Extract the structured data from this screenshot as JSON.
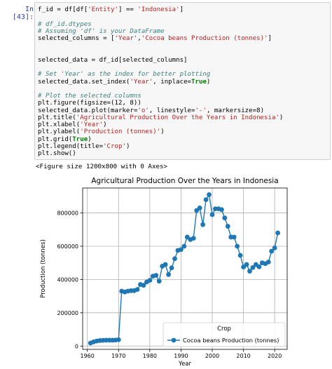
{
  "cell": {
    "prompt": "In [43]:",
    "lines": [
      [
        [
          "nb",
          "f_id = df[df["
        ],
        [
          "st",
          "'Entity'"
        ],
        [
          "nb",
          "] == "
        ],
        [
          "st",
          "'Indonesia'"
        ],
        [
          "nb",
          "]"
        ]
      ],
      [
        [
          "nb",
          ""
        ]
      ],
      [
        [
          "cm",
          "# df_id.dtypes"
        ]
      ],
      [
        [
          "cm",
          "# Assuming 'df' is your DataFrame"
        ]
      ],
      [
        [
          "nb",
          "selected_columns = ["
        ],
        [
          "st",
          "'Year'"
        ],
        [
          "nb",
          ","
        ],
        [
          "st",
          "'Cocoa beans Production (tonnes)'"
        ],
        [
          "nb",
          "]"
        ]
      ],
      [
        [
          "nb",
          ""
        ]
      ],
      [
        [
          "nb",
          ""
        ]
      ],
      [
        [
          "nb",
          "selected_data = df_id[selected_columns]"
        ]
      ],
      [
        [
          "nb",
          ""
        ]
      ],
      [
        [
          "cm",
          "# Set 'Year' as the index for better plotting"
        ]
      ],
      [
        [
          "nb",
          "selected_data.set_index("
        ],
        [
          "st",
          "'Year'"
        ],
        [
          "nb",
          ", inplace="
        ],
        [
          "kw",
          "True"
        ],
        [
          "nb",
          ")"
        ]
      ],
      [
        [
          "nb",
          ""
        ]
      ],
      [
        [
          "cm",
          "# Plot the selected columns"
        ]
      ],
      [
        [
          "nb",
          "plt.figure(figsize=(12, 8))"
        ]
      ],
      [
        [
          "nb",
          "selected_data.plot(marker="
        ],
        [
          "st",
          "'o'"
        ],
        [
          "nb",
          ", linestyle="
        ],
        [
          "st",
          "'-'"
        ],
        [
          "nb",
          ", markersize=8)"
        ]
      ],
      [
        [
          "nb",
          "plt.title("
        ],
        [
          "st",
          "'Agricultural Production Over the Years in Indonesia'"
        ],
        [
          "nb",
          ")"
        ]
      ],
      [
        [
          "nb",
          "plt.xlabel("
        ],
        [
          "st",
          "'Year'"
        ],
        [
          "nb",
          ")"
        ]
      ],
      [
        [
          "nb",
          "plt.ylabel("
        ],
        [
          "st",
          "'Production (tonnes)'"
        ],
        [
          "nb",
          ")"
        ]
      ],
      [
        [
          "nb",
          "plt.grid("
        ],
        [
          "kw",
          "True"
        ],
        [
          "nb",
          ")"
        ]
      ],
      [
        [
          "nb",
          "plt.legend(title="
        ],
        [
          "st",
          "'Crop'"
        ],
        [
          "nb",
          ")"
        ]
      ],
      [
        [
          "nb",
          "plt.show()"
        ]
      ]
    ]
  },
  "output": {
    "text": "<Figure size 1200x800 with 0 Axes>"
  },
  "chart_data": {
    "type": "line",
    "title": "Agricultural Production Over the Years in Indonesia",
    "xlabel": "Year",
    "ylabel": "Production (tonnes)",
    "xlim": [
      1958.5,
      2024
    ],
    "ylim": [
      -20000,
      950000
    ],
    "xticks": [
      1960,
      1970,
      1980,
      1990,
      2000,
      2010,
      2020
    ],
    "yticks": [
      0,
      200000,
      400000,
      600000,
      800000
    ],
    "ytick_labels": [
      "0",
      "200000",
      "400000",
      "600000",
      "800000"
    ],
    "grid": true,
    "legend": {
      "title": "Crop",
      "position": "lower right"
    },
    "color": "#1f77b4",
    "series": [
      {
        "name": "Cocoa beans Production (tonnes)",
        "x": [
          1961,
          1962,
          1963,
          1964,
          1965,
          1966,
          1967,
          1968,
          1969,
          1970,
          1971,
          1972,
          1973,
          1974,
          1975,
          1976,
          1977,
          1978,
          1979,
          1980,
          1981,
          1982,
          1983,
          1984,
          1985,
          1986,
          1987,
          1988,
          1989,
          1990,
          1991,
          1992,
          1993,
          1994,
          1995,
          1996,
          1997,
          1998,
          1999,
          2000,
          2001,
          2002,
          2003,
          2004,
          2005,
          2006,
          2007,
          2008,
          2009,
          2010,
          2011,
          2012,
          2013,
          2014,
          2015,
          2016,
          2017,
          2018,
          2019,
          2020,
          2021
        ],
        "y": [
          18000,
          25000,
          30000,
          33000,
          34000,
          35000,
          35000,
          35000,
          36000,
          38000,
          330000,
          325000,
          330000,
          333000,
          333000,
          340000,
          370000,
          365000,
          385000,
          395000,
          420000,
          425000,
          390000,
          480000,
          490000,
          430000,
          470000,
          525000,
          575000,
          580000,
          600000,
          655000,
          640000,
          648000,
          815000,
          830000,
          730000,
          880000,
          910000,
          790000,
          825000,
          825000,
          820000,
          770000,
          720000,
          655000,
          655000,
          600000,
          545000,
          475000,
          490000,
          450000,
          472000,
          490000,
          476000,
          500000,
          495000,
          505000,
          570000,
          590000,
          680000
        ]
      }
    ]
  }
}
